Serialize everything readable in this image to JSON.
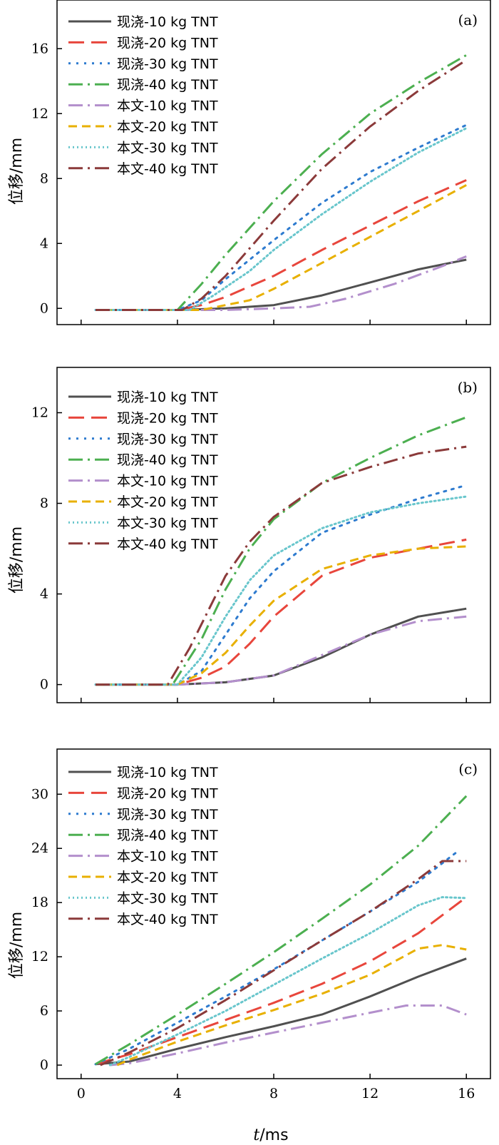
{
  "figure": {
    "ylabel": "位移/mm",
    "xlabel_italic": "t",
    "xlabel_rest": "/ms",
    "xticks": [
      0,
      4,
      8,
      12,
      16
    ],
    "xlim": [
      -1,
      17
    ]
  },
  "chart_data": [
    {
      "type": "line",
      "panel_label": "(a)",
      "ylim": [
        -1,
        19
      ],
      "yticks": [
        0,
        4,
        8,
        12,
        16
      ],
      "series": [
        {
          "name": "现浇-10 kg TNT",
          "color": "#505050",
          "dash": "solid",
          "width": 3,
          "points": [
            [
              0.6,
              -0.1
            ],
            [
              4,
              -0.1
            ],
            [
              6,
              0
            ],
            [
              8,
              0.2
            ],
            [
              10,
              0.8
            ],
            [
              12,
              1.6
            ],
            [
              14,
              2.4
            ],
            [
              16,
              3.0
            ]
          ]
        },
        {
          "name": "现浇-20 kg TNT",
          "color": "#e8463c",
          "dash": "long",
          "width": 3,
          "points": [
            [
              0.6,
              -0.1
            ],
            [
              4,
              -0.1
            ],
            [
              5,
              0.2
            ],
            [
              6,
              0.7
            ],
            [
              8,
              2.0
            ],
            [
              10,
              3.6
            ],
            [
              12,
              5.1
            ],
            [
              14,
              6.6
            ],
            [
              16,
              7.9
            ]
          ]
        },
        {
          "name": "现浇-30 kg TNT",
          "color": "#2e7bcf",
          "dash": "dot",
          "width": 3,
          "points": [
            [
              0.6,
              -0.1
            ],
            [
              4,
              -0.1
            ],
            [
              5,
              0.5
            ],
            [
              6,
              1.8
            ],
            [
              8,
              4.2
            ],
            [
              10,
              6.5
            ],
            [
              12,
              8.4
            ],
            [
              14,
              9.9
            ],
            [
              16,
              11.3
            ]
          ]
        },
        {
          "name": "现浇-40 kg TNT",
          "color": "#4caf50",
          "dash": "dashdot",
          "width": 3,
          "points": [
            [
              0.6,
              -0.1
            ],
            [
              4,
              -0.1
            ],
            [
              5,
              1.5
            ],
            [
              6,
              3.3
            ],
            [
              8,
              6.6
            ],
            [
              10,
              9.5
            ],
            [
              12,
              12.0
            ],
            [
              14,
              13.9
            ],
            [
              16,
              15.6
            ]
          ]
        },
        {
          "name": "本文-10 kg TNT",
          "color": "#b38fcc",
          "dash": "dashdot",
          "width": 3,
          "points": [
            [
              0.6,
              -0.1
            ],
            [
              6,
              -0.1
            ],
            [
              8,
              0
            ],
            [
              9.5,
              0.1
            ],
            [
              11,
              0.6
            ],
            [
              13,
              1.5
            ],
            [
              15,
              2.6
            ],
            [
              16,
              3.2
            ]
          ]
        },
        {
          "name": "本文-20 kg TNT",
          "color": "#e8b000",
          "dash": "dash",
          "width": 3,
          "points": [
            [
              0.6,
              -0.1
            ],
            [
              5,
              -0.1
            ],
            [
              6,
              0.2
            ],
            [
              7,
              0.5
            ],
            [
              8,
              1.2
            ],
            [
              10,
              2.8
            ],
            [
              12,
              4.4
            ],
            [
              14,
              6.0
            ],
            [
              16,
              7.6
            ]
          ]
        },
        {
          "name": "本文-30 kg TNT",
          "color": "#68c6cc",
          "dash": "finedot",
          "width": 3,
          "points": [
            [
              0.6,
              -0.1
            ],
            [
              4.5,
              -0.1
            ],
            [
              5.5,
              0.8
            ],
            [
              7,
              2.3
            ],
            [
              8,
              3.6
            ],
            [
              10,
              5.8
            ],
            [
              12,
              7.8
            ],
            [
              14,
              9.6
            ],
            [
              16,
              11.1
            ]
          ]
        },
        {
          "name": "本文-40 kg TNT",
          "color": "#8b3a3a",
          "dash": "dashdot",
          "width": 3,
          "points": [
            [
              0.6,
              -0.1
            ],
            [
              4.2,
              -0.1
            ],
            [
              5,
              0.6
            ],
            [
              6,
              2.0
            ],
            [
              8,
              5.4
            ],
            [
              10,
              8.6
            ],
            [
              12,
              11.2
            ],
            [
              14,
              13.4
            ],
            [
              16,
              15.3
            ]
          ]
        }
      ]
    },
    {
      "type": "line",
      "panel_label": "(b)",
      "ylim": [
        -0.8,
        14
      ],
      "yticks": [
        0,
        4,
        8,
        12
      ],
      "series": [
        {
          "name": "现浇-10 kg TNT",
          "color": "#505050",
          "dash": "solid",
          "width": 3,
          "points": [
            [
              0.6,
              0
            ],
            [
              4,
              0
            ],
            [
              6,
              0.1
            ],
            [
              8,
              0.4
            ],
            [
              10,
              1.2
            ],
            [
              12,
              2.2
            ],
            [
              14,
              3.0
            ],
            [
              16,
              3.35
            ]
          ]
        },
        {
          "name": "现浇-20 kg TNT",
          "color": "#e8463c",
          "dash": "long",
          "width": 3,
          "points": [
            [
              0.6,
              0
            ],
            [
              4,
              0
            ],
            [
              5,
              0.3
            ],
            [
              6,
              0.8
            ],
            [
              7,
              1.8
            ],
            [
              8,
              3.0
            ],
            [
              10,
              4.8
            ],
            [
              12,
              5.6
            ],
            [
              14,
              6.0
            ],
            [
              16,
              6.4
            ]
          ]
        },
        {
          "name": "现浇-30 kg TNT",
          "color": "#2e7bcf",
          "dash": "dot",
          "width": 3,
          "points": [
            [
              0.6,
              0
            ],
            [
              4,
              0
            ],
            [
              5,
              0.6
            ],
            [
              6,
              2.2
            ],
            [
              7,
              3.8
            ],
            [
              8,
              5.0
            ],
            [
              10,
              6.7
            ],
            [
              12,
              7.5
            ],
            [
              14,
              8.2
            ],
            [
              16,
              8.8
            ]
          ]
        },
        {
          "name": "现浇-40 kg TNT",
          "color": "#4caf50",
          "dash": "dashdot",
          "width": 3,
          "points": [
            [
              0.6,
              0
            ],
            [
              3.8,
              0
            ],
            [
              5,
              2.0
            ],
            [
              6,
              4.2
            ],
            [
              7,
              6.0
            ],
            [
              8,
              7.3
            ],
            [
              10,
              8.9
            ],
            [
              12,
              10.0
            ],
            [
              14,
              11.0
            ],
            [
              16,
              11.8
            ]
          ]
        },
        {
          "name": "本文-10 kg TNT",
          "color": "#b38fcc",
          "dash": "dashdot",
          "width": 3,
          "points": [
            [
              0.6,
              0
            ],
            [
              4,
              0
            ],
            [
              6,
              0.1
            ],
            [
              8,
              0.4
            ],
            [
              10,
              1.3
            ],
            [
              12,
              2.2
            ],
            [
              14,
              2.8
            ],
            [
              16,
              3.0
            ]
          ]
        },
        {
          "name": "本文-20 kg TNT",
          "color": "#e8b000",
          "dash": "dash",
          "width": 3,
          "points": [
            [
              0.6,
              0
            ],
            [
              4,
              0
            ],
            [
              5,
              0.5
            ],
            [
              6,
              1.4
            ],
            [
              7,
              2.6
            ],
            [
              8,
              3.7
            ],
            [
              10,
              5.1
            ],
            [
              12,
              5.7
            ],
            [
              14,
              6.0
            ],
            [
              16,
              6.1
            ]
          ]
        },
        {
          "name": "本文-30 kg TNT",
          "color": "#68c6cc",
          "dash": "finedot",
          "width": 3,
          "points": [
            [
              0.6,
              0
            ],
            [
              4,
              0
            ],
            [
              5,
              1.2
            ],
            [
              6,
              3.0
            ],
            [
              7,
              4.6
            ],
            [
              8,
              5.7
            ],
            [
              10,
              6.9
            ],
            [
              12,
              7.6
            ],
            [
              14,
              8.0
            ],
            [
              16,
              8.3
            ]
          ]
        },
        {
          "name": "本文-40 kg TNT",
          "color": "#8b3a3a",
          "dash": "dashdot",
          "width": 3,
          "points": [
            [
              0.6,
              0
            ],
            [
              3.6,
              0
            ],
            [
              4.5,
              1.6
            ],
            [
              6,
              4.8
            ],
            [
              7,
              6.3
            ],
            [
              8,
              7.4
            ],
            [
              10,
              8.9
            ],
            [
              12,
              9.6
            ],
            [
              14,
              10.2
            ],
            [
              16,
              10.5
            ]
          ]
        }
      ]
    },
    {
      "type": "line",
      "panel_label": "(c)",
      "ylim": [
        -1.5,
        35
      ],
      "yticks": [
        0,
        6,
        12,
        18,
        24,
        30
      ],
      "series": [
        {
          "name": "现浇-10 kg TNT",
          "color": "#505050",
          "dash": "solid",
          "width": 3,
          "points": [
            [
              0.6,
              0.1
            ],
            [
              2,
              0.4
            ],
            [
              4,
              1.8
            ],
            [
              6,
              3.1
            ],
            [
              8,
              4.3
            ],
            [
              10,
              5.6
            ],
            [
              12,
              7.6
            ],
            [
              14,
              9.8
            ],
            [
              16,
              11.8
            ]
          ]
        },
        {
          "name": "现浇-20 kg TNT",
          "color": "#e8463c",
          "dash": "long",
          "width": 3,
          "points": [
            [
              0.6,
              0.1
            ],
            [
              2,
              1.2
            ],
            [
              4,
              3.1
            ],
            [
              6,
              5.0
            ],
            [
              8,
              6.9
            ],
            [
              10,
              9.0
            ],
            [
              12,
              11.5
            ],
            [
              14,
              14.6
            ],
            [
              16,
              18.6
            ]
          ]
        },
        {
          "name": "现浇-30 kg TNT",
          "color": "#2e7bcf",
          "dash": "dot",
          "width": 3,
          "points": [
            [
              0.6,
              0.1
            ],
            [
              2,
              1.8
            ],
            [
              4,
              4.7
            ],
            [
              6,
              7.6
            ],
            [
              8,
              10.6
            ],
            [
              10,
              13.8
            ],
            [
              12,
              17.0
            ],
            [
              14,
              20.3
            ],
            [
              15.7,
              23.8
            ]
          ]
        },
        {
          "name": "现浇-40 kg TNT",
          "color": "#4caf50",
          "dash": "dashdot",
          "width": 3,
          "points": [
            [
              0.6,
              0.1
            ],
            [
              2,
              2.3
            ],
            [
              4,
              5.6
            ],
            [
              6,
              9.0
            ],
            [
              8,
              12.5
            ],
            [
              10,
              16.2
            ],
            [
              12,
              20.0
            ],
            [
              14,
              24.3
            ],
            [
              16,
              29.8
            ]
          ]
        },
        {
          "name": "本文-10 kg TNT",
          "color": "#b38fcc",
          "dash": "dashdot",
          "width": 3,
          "points": [
            [
              1.2,
              0
            ],
            [
              2,
              0.2
            ],
            [
              4,
              1.3
            ],
            [
              6,
              2.5
            ],
            [
              8,
              3.6
            ],
            [
              10,
              4.7
            ],
            [
              12,
              5.8
            ],
            [
              13.5,
              6.6
            ],
            [
              15,
              6.6
            ],
            [
              16,
              5.6
            ]
          ]
        },
        {
          "name": "本文-20 kg TNT",
          "color": "#e8b000",
          "dash": "dash",
          "width": 3,
          "points": [
            [
              1.5,
              0
            ],
            [
              2,
              0.6
            ],
            [
              4,
              2.6
            ],
            [
              6,
              4.4
            ],
            [
              8,
              6.1
            ],
            [
              10,
              7.9
            ],
            [
              12,
              10.0
            ],
            [
              14,
              12.9
            ],
            [
              15,
              13.3
            ],
            [
              16,
              12.8
            ]
          ]
        },
        {
          "name": "本文-30 kg TNT",
          "color": "#68c6cc",
          "dash": "finedot",
          "width": 3,
          "points": [
            [
              1.2,
              0
            ],
            [
              2,
              0.9
            ],
            [
              4,
              3.4
            ],
            [
              6,
              6.0
            ],
            [
              8,
              8.9
            ],
            [
              10,
              11.8
            ],
            [
              12,
              14.6
            ],
            [
              14,
              17.7
            ],
            [
              15,
              18.6
            ],
            [
              16,
              18.5
            ]
          ]
        },
        {
          "name": "本文-40 kg TNT",
          "color": "#8b3a3a",
          "dash": "dashdot",
          "width": 3,
          "points": [
            [
              0.8,
              0
            ],
            [
              2,
              1.4
            ],
            [
              4,
              4.1
            ],
            [
              6,
              7.2
            ],
            [
              8,
              10.5
            ],
            [
              10,
              13.8
            ],
            [
              12,
              17.0
            ],
            [
              14,
              20.6
            ],
            [
              15,
              22.6
            ],
            [
              16,
              22.6
            ]
          ]
        }
      ]
    }
  ]
}
